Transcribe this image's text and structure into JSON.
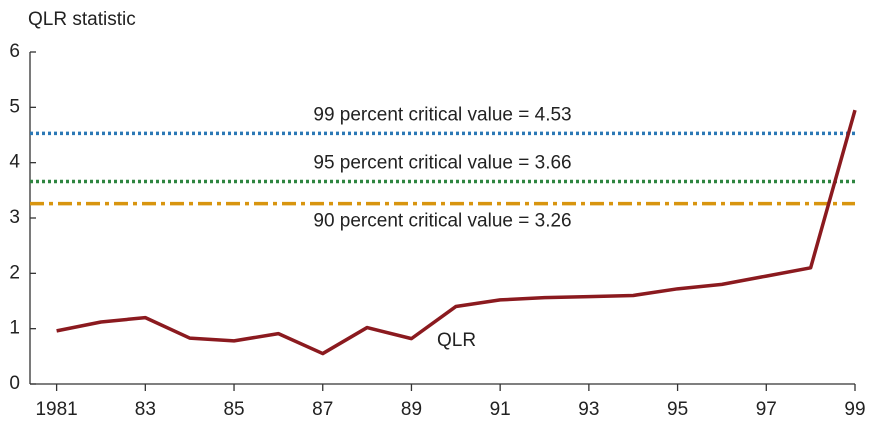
{
  "chart_data": {
    "type": "line",
    "y_axis_label": "QLR statistic",
    "x": [
      1981,
      1982,
      1983,
      1984,
      1985,
      1986,
      1987,
      1988,
      1989,
      1990,
      1991,
      1992,
      1993,
      1994,
      1995,
      1996,
      1997,
      1998,
      1999
    ],
    "series": [
      {
        "name": "QLR",
        "color": "#8b1a1f",
        "values": [
          0.96,
          1.12,
          1.2,
          0.83,
          0.78,
          0.91,
          0.55,
          1.02,
          0.82,
          1.4,
          1.52,
          1.56,
          1.58,
          1.6,
          1.72,
          1.8,
          1.95,
          2.1,
          4.95
        ]
      }
    ],
    "reference_lines": [
      {
        "label": "99 percent critical value = 4.53",
        "value": 4.53,
        "color": "#2b78b5",
        "style": "dotted",
        "label_position": "above"
      },
      {
        "label": "95 percent critical value = 3.66",
        "value": 3.66,
        "color": "#2e8540",
        "style": "dotted",
        "label_position": "above"
      },
      {
        "label": "90 percent critical value = 3.26",
        "value": 3.26,
        "color": "#d8950f",
        "style": "dashdot",
        "label_position": "below"
      }
    ],
    "xlim": [
      1980.4,
      1999
    ],
    "xticks": [
      {
        "value": 1981,
        "label": "1981"
      },
      {
        "value": 1983,
        "label": "83"
      },
      {
        "value": 1985,
        "label": "85"
      },
      {
        "value": 1987,
        "label": "87"
      },
      {
        "value": 1989,
        "label": "89"
      },
      {
        "value": 1991,
        "label": "91"
      },
      {
        "value": 1993,
        "label": "93"
      },
      {
        "value": 1995,
        "label": "95"
      },
      {
        "value": 1997,
        "label": "97"
      },
      {
        "value": 1999,
        "label": "99"
      }
    ],
    "ylim": [
      0,
      6
    ],
    "yticks": [
      0,
      1,
      2,
      3,
      4,
      5,
      6
    ],
    "grid": false
  }
}
